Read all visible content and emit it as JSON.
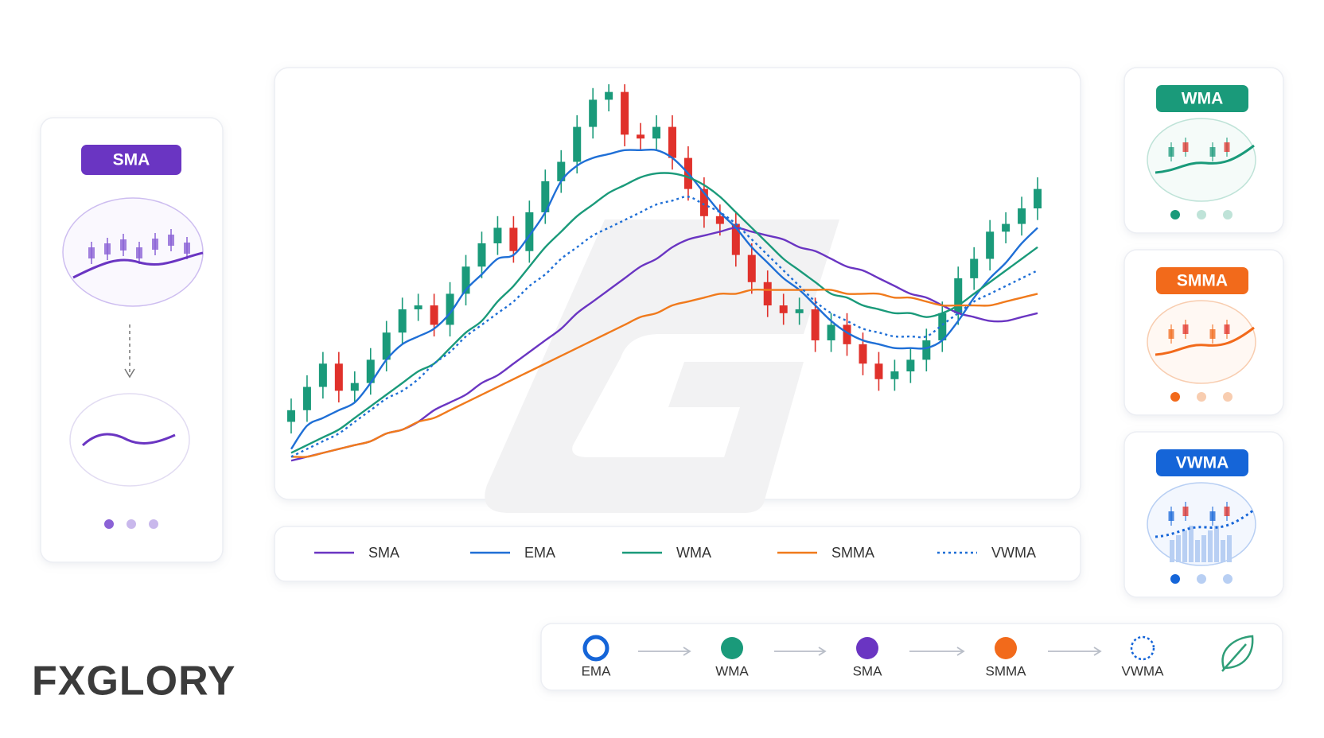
{
  "chart_data": {
    "type": "candlestick",
    "x": [
      1,
      2,
      3,
      4,
      5,
      6,
      7,
      8,
      9,
      10,
      11,
      12,
      13,
      14,
      15,
      16,
      17,
      18,
      19,
      20,
      21,
      22,
      23,
      24,
      25,
      26,
      27,
      28,
      29,
      30,
      31,
      32,
      33,
      34,
      35,
      36,
      37,
      38,
      39,
      40,
      41,
      42,
      43,
      44,
      45,
      46,
      47,
      48
    ],
    "xlim": [
      0,
      49
    ],
    "ylim": [
      0,
      100
    ],
    "open": [
      12,
      15,
      21,
      27,
      20,
      22,
      28,
      35,
      41,
      42,
      37,
      45,
      52,
      58,
      62,
      56,
      66,
      74,
      79,
      88,
      95,
      97,
      86,
      85,
      88,
      80,
      72,
      65,
      63,
      55,
      48,
      42,
      40,
      41,
      33,
      37,
      32,
      27,
      23,
      25,
      28,
      33,
      40,
      49,
      54,
      61,
      63,
      67
    ],
    "high": [
      18,
      24,
      30,
      30,
      25,
      31,
      38,
      44,
      45,
      45,
      48,
      55,
      61,
      65,
      65,
      69,
      77,
      82,
      91,
      98,
      99,
      99,
      89,
      91,
      91,
      83,
      75,
      68,
      66,
      58,
      51,
      45,
      44,
      44,
      40,
      40,
      35,
      30,
      28,
      31,
      36,
      43,
      52,
      57,
      64,
      66,
      70,
      75
    ],
    "low": [
      9,
      12,
      18,
      17,
      17,
      19,
      25,
      32,
      38,
      34,
      34,
      42,
      49,
      55,
      53,
      53,
      63,
      71,
      76,
      85,
      92,
      83,
      82,
      82,
      77,
      69,
      62,
      60,
      52,
      45,
      39,
      37,
      37,
      30,
      30,
      29,
      24,
      20,
      20,
      22,
      25,
      30,
      37,
      46,
      51,
      58,
      60,
      64
    ],
    "close": [
      15,
      21,
      27,
      20,
      22,
      28,
      35,
      41,
      42,
      37,
      45,
      52,
      58,
      62,
      56,
      66,
      74,
      79,
      88,
      95,
      97,
      86,
      85,
      88,
      80,
      72,
      65,
      63,
      55,
      48,
      42,
      40,
      41,
      33,
      37,
      32,
      27,
      23,
      25,
      28,
      33,
      40,
      49,
      54,
      61,
      63,
      67,
      72
    ],
    "up_color": "#1a9a7a",
    "down_color": "#e0312b",
    "series": [
      {
        "name": "SMA",
        "color": "#6a35c2",
        "style": "solid",
        "values": [
          2,
          3,
          4,
          5,
          6,
          7,
          9,
          10,
          12,
          15,
          17,
          19,
          22,
          24,
          27,
          30,
          33,
          36,
          40,
          43,
          46,
          49,
          52,
          54,
          57,
          59,
          60,
          61,
          62,
          61,
          60,
          59,
          57,
          56,
          54,
          52,
          51,
          49,
          47,
          45,
          44,
          42,
          40,
          39,
          38,
          38,
          39,
          40
        ]
      },
      {
        "name": "EMA",
        "color": "#1f6fd6",
        "style": "solid",
        "values": [
          5,
          11,
          13,
          15,
          17,
          22,
          28,
          32,
          34,
          36,
          40,
          46,
          50,
          54,
          55,
          60,
          66,
          74,
          78,
          80,
          81,
          82,
          82,
          82,
          80,
          76,
          71,
          66,
          62,
          57,
          53,
          49,
          46,
          42,
          38,
          35,
          33,
          32,
          31,
          31,
          31,
          33,
          38,
          44,
          49,
          53,
          58,
          62
        ]
      },
      {
        "name": "WMA",
        "color": "#1a9a7a",
        "style": "solid",
        "values": [
          4,
          6,
          8,
          10,
          13,
          16,
          19,
          22,
          25,
          27,
          31,
          35,
          38,
          43,
          47,
          52,
          57,
          61,
          65,
          68,
          71,
          73,
          75,
          76,
          76,
          75,
          73,
          70,
          66,
          62,
          58,
          54,
          51,
          48,
          45,
          44,
          42,
          41,
          40,
          40,
          39,
          40,
          42,
          45,
          48,
          51,
          54,
          57
        ]
      },
      {
        "name": "SMMA",
        "color": "#f07a1c",
        "style": "solid",
        "values": [
          3,
          3,
          4,
          5,
          6,
          7,
          9,
          10,
          12,
          13,
          15,
          17,
          19,
          21,
          23,
          25,
          27,
          29,
          31,
          33,
          35,
          37,
          39,
          40,
          42,
          43,
          44,
          45,
          45,
          46,
          46,
          46,
          46,
          46,
          46,
          45,
          45,
          45,
          44,
          44,
          43,
          42,
          42,
          42,
          42,
          43,
          44,
          45
        ]
      },
      {
        "name": "VWMA",
        "color": "#1f6fd6",
        "style": "dotted",
        "values": [
          3,
          5,
          7,
          9,
          12,
          15,
          18,
          20,
          23,
          27,
          30,
          34,
          37,
          40,
          43,
          47,
          50,
          54,
          57,
          60,
          62,
          64,
          66,
          68,
          69,
          70,
          68,
          66,
          63,
          59,
          55,
          51,
          47,
          43,
          40,
          38,
          36,
          35,
          34,
          34,
          34,
          37,
          40,
          43,
          45,
          47,
          49,
          51
        ]
      }
    ]
  },
  "panels": {
    "left": {
      "badge": "SMA"
    },
    "right": [
      {
        "badge": "WMA"
      },
      {
        "badge": "SMMA"
      },
      {
        "badge": "VWMA"
      }
    ]
  },
  "flow": {
    "labels": [
      "EMA",
      "WMA",
      "SMA",
      "SMMA",
      "VWMA"
    ]
  },
  "logo": {
    "text": "FXGLORY"
  }
}
